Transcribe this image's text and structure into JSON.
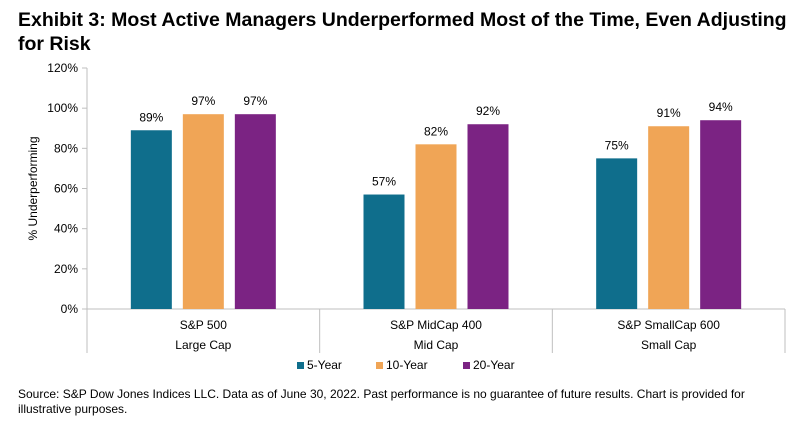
{
  "title": "Exhibit 3: Most Active Managers Underperformed Most of the Time, Even Adjusting for Risk",
  "source": "Source: S&P Dow Jones Indices LLC.  Data as of June 30, 2022.  Past performance is no guarantee of future results.  Chart is provided for illustrative purposes.",
  "colors": {
    "5-Year": "#0f6e8c",
    "10-Year": "#f0a556",
    "20-Year": "#7b2383",
    "axis": "#bfbfbf"
  },
  "chart_data": {
    "type": "bar",
    "categories": [
      "S&P 500",
      "S&P MidCap 400",
      "S&P SmallCap 600"
    ],
    "category_groups": [
      "Large Cap",
      "Mid Cap",
      "Small Cap"
    ],
    "series": [
      {
        "name": "5-Year",
        "values": [
          89,
          57,
          75
        ],
        "labels": [
          "89%",
          "57%",
          "75%"
        ]
      },
      {
        "name": "10-Year",
        "values": [
          97,
          82,
          91
        ],
        "labels": [
          "97%",
          "82%",
          "91%"
        ]
      },
      {
        "name": "20-Year",
        "values": [
          97,
          92,
          94
        ],
        "labels": [
          "97%",
          "92%",
          "94%"
        ]
      }
    ],
    "ylabel": "% Underperforming",
    "ylim": [
      0,
      120
    ],
    "yticks": [
      0,
      20,
      40,
      60,
      80,
      100,
      120
    ],
    "ytick_labels": [
      "0%",
      "20%",
      "40%",
      "60%",
      "80%",
      "100%",
      "120%"
    ],
    "grid": false,
    "legend_position": "bottom"
  }
}
